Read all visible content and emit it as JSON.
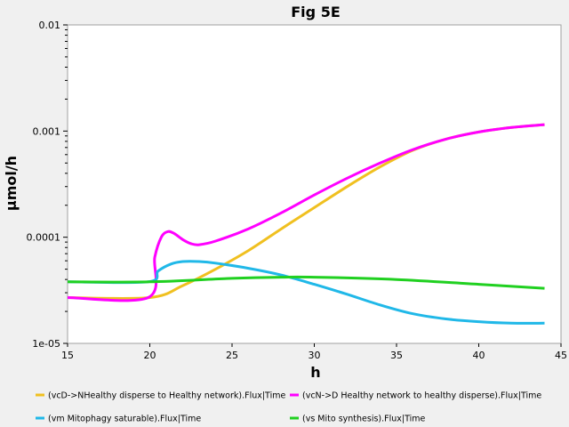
{
  "chart_data": {
    "type": "line",
    "title": "Fig 5E",
    "xlabel": "h",
    "ylabel": "µmol/h",
    "xlim": [
      15,
      45
    ],
    "ylim": [
      1e-05,
      0.01
    ],
    "yscale": "log",
    "grid": false,
    "legend_placement": "bottom",
    "x_ticks": [
      "15",
      "20",
      "25",
      "30",
      "35",
      "40",
      "45"
    ],
    "y_ticks": [
      "1e-05",
      "0.0001",
      "0.001",
      "0.01"
    ],
    "series": [
      {
        "name": "(vcD->NHealthy disperse to Healthy network).Flux|Time",
        "color": "#f0c020",
        "x": [
          15,
          20,
          22,
          24,
          26,
          28,
          30,
          32,
          34,
          36,
          38,
          40,
          42,
          44
        ],
        "y": [
          2.7e-05,
          2.7e-05,
          3.5e-05,
          5e-05,
          7.5e-05,
          0.00012,
          0.00019,
          0.0003,
          0.00046,
          0.00066,
          0.00084,
          0.00098,
          0.00108,
          0.00115
        ]
      },
      {
        "name": "(vcN->D Healthy network to healthy disperse).Flux|Time",
        "color": "#ff00ff",
        "x": [
          15,
          19.9,
          20.3,
          20.7,
          21.1,
          21.5,
          22,
          22.5,
          23,
          24,
          26,
          28,
          30,
          32,
          34,
          36,
          38,
          40,
          42,
          44
        ],
        "y": [
          2.7e-05,
          2.7e-05,
          6.5e-05,
          0.0001,
          0.000113,
          0.000108,
          9.5e-05,
          8.7e-05,
          8.5e-05,
          9.2e-05,
          0.00012,
          0.00017,
          0.00025,
          0.00036,
          0.0005,
          0.00067,
          0.00084,
          0.00098,
          0.00108,
          0.00115
        ]
      },
      {
        "name": "(vm Mitophagy saturable).Flux|Time",
        "color": "#20b8e8",
        "x": [
          15,
          19.9,
          20.5,
          21.3,
          22,
          23,
          24,
          26,
          28,
          30,
          32,
          34,
          36,
          38,
          40,
          42,
          44
        ],
        "y": [
          3.8e-05,
          3.8e-05,
          4.8e-05,
          5.6e-05,
          5.9e-05,
          5.9e-05,
          5.7e-05,
          5.1e-05,
          4.4e-05,
          3.6e-05,
          2.9e-05,
          2.3e-05,
          1.9e-05,
          1.7e-05,
          1.6e-05,
          1.55e-05,
          1.55e-05
        ]
      },
      {
        "name": "(vs Mito synthesis).Flux|Time",
        "color": "#20d020",
        "x": [
          15,
          20,
          25,
          28,
          30,
          35,
          40,
          44
        ],
        "y": [
          3.8e-05,
          3.8e-05,
          4.1e-05,
          4.2e-05,
          4.2e-05,
          4e-05,
          3.6e-05,
          3.3e-05
        ]
      }
    ]
  }
}
